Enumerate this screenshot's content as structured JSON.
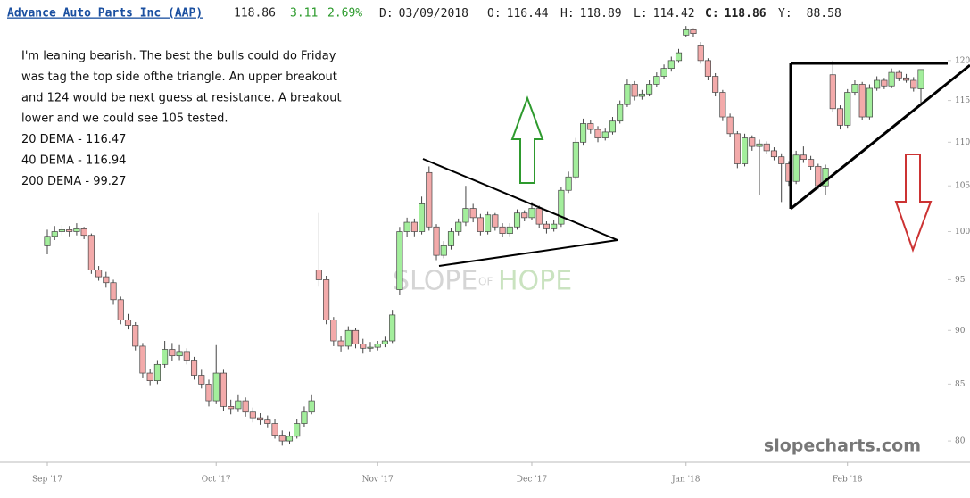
{
  "header": {
    "title": "Advance Auto Parts Inc (AAP)",
    "last": 118.86,
    "change": 3.11,
    "change_pct": "2.69%",
    "items": [
      {
        "label": "D:",
        "value": "03/09/2018"
      },
      {
        "label": "O:",
        "value": 116.44
      },
      {
        "label": "H:",
        "value": 118.89
      },
      {
        "label": "L:",
        "value": 114.42
      },
      {
        "label": "C:",
        "value": 118.86
      },
      {
        "label": "Y:",
        "value": 88.58
      }
    ]
  },
  "chart_data": {
    "type": "candlestick",
    "annotation": [
      "I'm leaning bearish. The best the bulls could do Friday",
      "was tag the top side ofthe triangle. An upper breakout",
      "and 124 would be next guess at resistance. A breakout",
      "lower and we could see 105 tested.",
      "20 DEMA - 116.47",
      "40 DEMA - 116.94",
      "200 DEMA - 99.27"
    ],
    "watermark": [
      "SLOPE",
      "OF",
      "HOPE"
    ],
    "source": "slopecharts.com",
    "up_color": "#a3ee9c",
    "down_color": "#f3aaaa",
    "log_scale": true,
    "ylim": [
      78.2,
      124.4
    ],
    "yticks": [
      80,
      85,
      90,
      95,
      100,
      105,
      110,
      115,
      120
    ],
    "xlim": [
      0,
      119
    ],
    "xticks": [
      {
        "value": 0,
        "label": "Sep '17"
      },
      {
        "value": 23,
        "label": "Oct '17"
      },
      {
        "value": 45,
        "label": "Nov '17"
      },
      {
        "value": 66,
        "label": "Dec '17"
      },
      {
        "value": 87,
        "label": "Jan '18"
      },
      {
        "value": 109,
        "label": "Feb '18"
      }
    ],
    "open": [
      98.5,
      99.5,
      100,
      100.2,
      100,
      100.3,
      99.6,
      96,
      95.3,
      94.7,
      93,
      91,
      90.5,
      88.5,
      86,
      85.3,
      86.8,
      88.2,
      87.6,
      88,
      87.2,
      85.8,
      85,
      83.5,
      86,
      83,
      82.8,
      83.5,
      82.5,
      82,
      81.8,
      81.5,
      80.5,
      80,
      80.4,
      81.5,
      82.5,
      96,
      95,
      91,
      89,
      88.5,
      90,
      88.7,
      88.3,
      88.4,
      88.7,
      89,
      94,
      100,
      101,
      100,
      106.5,
      100.5,
      97.5,
      98.5,
      100,
      101,
      102.5,
      101.5,
      100,
      101.8,
      100.5,
      99.8,
      100.5,
      102,
      101.5,
      102.5,
      100.8,
      100.3,
      100.8,
      104.5,
      106,
      110,
      112.2,
      111.5,
      110.5,
      111.2,
      112.5,
      114.5,
      117,
      115.5,
      115.8,
      117,
      118,
      119,
      120,
      123.3,
      124,
      122,
      120,
      118,
      116,
      113,
      111,
      107.5,
      110.5,
      109.5,
      109.8,
      109,
      108.3,
      107.5,
      105.5,
      108.5,
      108,
      107.2,
      105,
      118.2,
      114,
      112,
      116,
      117,
      113,
      116.5,
      117.5,
      116.8,
      118.5,
      117.8,
      117.5,
      116.44
    ],
    "high": [
      100.2,
      100.6,
      100.7,
      100.6,
      100.9,
      100.5,
      99.8,
      96.4,
      95.8,
      95,
      93.3,
      91.6,
      90.8,
      88.8,
      86.4,
      87.2,
      89,
      88.8,
      88.6,
      88.3,
      87.5,
      86.3,
      85.4,
      88.6,
      86.3,
      83.6,
      84,
      83.8,
      82.9,
      82.4,
      82.2,
      81.9,
      80.9,
      80.8,
      81.9,
      83,
      84,
      102,
      95.4,
      91.3,
      89.5,
      90.4,
      90.2,
      89.2,
      88.9,
      89,
      89.4,
      92,
      100.5,
      101.5,
      101.4,
      103.8,
      107.2,
      100.8,
      99,
      100.4,
      101.4,
      105,
      103,
      101.9,
      102.2,
      102,
      100.9,
      100.9,
      102.4,
      102.3,
      103.2,
      102.8,
      101.1,
      101.2,
      104.9,
      106.6,
      110.5,
      112.8,
      112.6,
      111.9,
      111.7,
      113,
      115,
      117.6,
      117.4,
      116.3,
      117.5,
      118.5,
      119.5,
      120.5,
      121.5,
      124.5,
      124.2,
      122.4,
      120.3,
      118.4,
      116.3,
      113.4,
      111.3,
      111,
      110.8,
      110.3,
      110.1,
      109.4,
      108.7,
      107.8,
      109,
      109.5,
      108.4,
      107.5,
      107.4,
      120,
      114.4,
      116.4,
      117.5,
      117.3,
      117,
      118,
      117.8,
      119,
      118.8,
      118.3,
      117.9,
      118.89
    ],
    "low": [
      97.6,
      99.1,
      99.6,
      99.5,
      99.6,
      99.2,
      95.6,
      94.9,
      94.2,
      92.5,
      90.6,
      90.1,
      88.1,
      85.6,
      84.9,
      85,
      86.5,
      87.1,
      87.2,
      86.8,
      85.4,
      84.6,
      83,
      83.2,
      82.6,
      82.3,
      82.5,
      82.1,
      81.6,
      81.4,
      81.1,
      80.2,
      79.6,
      79.7,
      80.2,
      81.2,
      82.3,
      94.3,
      90.6,
      88.5,
      88,
      88.2,
      88.3,
      87.8,
      88,
      88.1,
      88.4,
      88.8,
      93.5,
      99.4,
      99.5,
      99.7,
      100.1,
      97,
      97.2,
      98.1,
      99.6,
      100.6,
      101,
      99.6,
      99.7,
      100.1,
      99.4,
      99.5,
      100.2,
      101.1,
      101.2,
      100.4,
      99.8,
      100,
      100.5,
      104.2,
      105.7,
      109.6,
      111,
      110,
      110.2,
      110.9,
      112.2,
      114.2,
      115,
      115.1,
      115.5,
      116.7,
      117.7,
      118.6,
      119.7,
      123,
      123,
      119.6,
      117.5,
      115.5,
      112.5,
      110.6,
      107,
      107.2,
      109,
      104,
      108.6,
      107.9,
      103.2,
      105,
      105.2,
      107.6,
      106.8,
      104.6,
      104,
      113.6,
      111.5,
      111.7,
      115.6,
      112.6,
      112.7,
      116.2,
      116.4,
      116.5,
      117.4,
      117.2,
      116.1,
      114.42
    ],
    "close": [
      99.5,
      100,
      100.2,
      100,
      100.3,
      99.6,
      96,
      95.3,
      94.7,
      93,
      91,
      90.5,
      88.5,
      86,
      85.3,
      86.8,
      88.2,
      87.6,
      88,
      87.2,
      85.8,
      85,
      83.5,
      86,
      83,
      82.8,
      83.5,
      82.5,
      82,
      81.8,
      81.5,
      80.5,
      80,
      80.4,
      81.5,
      82.5,
      83.5,
      95,
      91,
      89,
      88.5,
      90,
      88.7,
      88.3,
      88.4,
      88.7,
      89,
      91.5,
      100,
      101,
      100,
      103,
      100.5,
      97.5,
      98.5,
      100,
      101,
      102.5,
      101.5,
      100,
      101.8,
      100.5,
      99.8,
      100.5,
      102,
      101.5,
      102.5,
      100.8,
      100.3,
      100.8,
      104.5,
      106,
      110,
      112.2,
      111.5,
      110.5,
      111.2,
      112.5,
      114.5,
      117,
      115.5,
      115.8,
      117,
      118,
      119,
      120,
      121,
      124,
      123.5,
      120,
      118,
      116,
      113,
      111,
      107.5,
      110.5,
      109.5,
      109.8,
      109,
      108.3,
      107.5,
      105.5,
      108.5,
      108,
      107.2,
      105,
      107,
      114,
      112,
      116,
      117,
      113,
      116.5,
      117.5,
      116.8,
      118.5,
      117.8,
      117.5,
      116.5,
      118.86
    ]
  }
}
